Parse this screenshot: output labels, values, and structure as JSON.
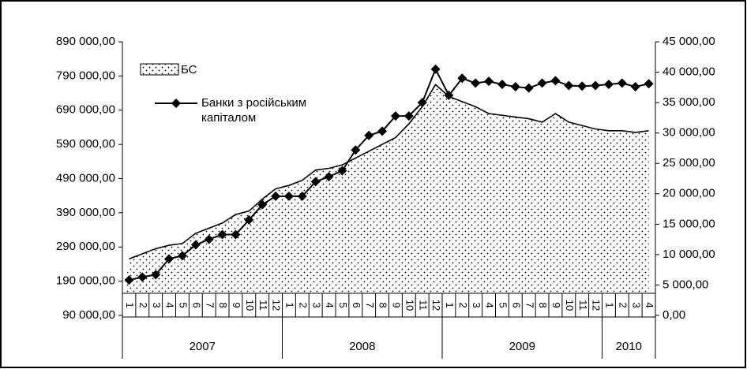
{
  "chart_data": {
    "type": "line-area",
    "categories": [
      "1",
      "2",
      "3",
      "4",
      "5",
      "6",
      "7",
      "8",
      "9",
      "10",
      "11",
      "12",
      "1",
      "2",
      "3",
      "4",
      "5",
      "6",
      "7",
      "8",
      "9",
      "10",
      "11",
      "12",
      "1",
      "2",
      "3",
      "4",
      "5",
      "6",
      "7",
      "8",
      "9",
      "10",
      "11",
      "12",
      "1",
      "2",
      "3",
      "4"
    ],
    "category_groups": [
      "2007",
      "2008",
      "2009",
      "2010"
    ],
    "series": [
      {
        "name": "БС",
        "kind": "area",
        "axis": "y",
        "color": "#000000",
        "values": [
          255000,
          270000,
          285000,
          295000,
          300000,
          330000,
          345000,
          360000,
          385000,
          395000,
          430000,
          460000,
          470000,
          485000,
          515000,
          520000,
          530000,
          550000,
          570000,
          590000,
          610000,
          650000,
          700000,
          765000,
          730000,
          715000,
          700000,
          680000,
          675000,
          670000,
          665000,
          655000,
          680000,
          655000,
          645000,
          635000,
          630000,
          630000,
          625000,
          630000
        ]
      },
      {
        "name": "Банки з російським капіталом",
        "kind": "line",
        "axis": "y2",
        "color": "#000000",
        "values": [
          5800,
          6300,
          6700,
          9300,
          9800,
          11600,
          12500,
          13300,
          13300,
          15700,
          18200,
          19600,
          19600,
          19600,
          22000,
          22800,
          23800,
          27200,
          29600,
          30300,
          32800,
          32800,
          35000,
          40500,
          36200,
          39000,
          38200,
          38500,
          38000,
          37600,
          37400,
          38200,
          38600,
          37800,
          37700,
          37800,
          38000,
          38200,
          37600,
          38100
        ]
      }
    ],
    "ylim": [
      90000,
      890000
    ],
    "yticks": [
      {
        "value": 90000,
        "label": "90 000,00"
      },
      {
        "value": 190000,
        "label": "190 000,00"
      },
      {
        "value": 290000,
        "label": "290 000,00"
      },
      {
        "value": 390000,
        "label": "390 000,00"
      },
      {
        "value": 490000,
        "label": "490 000,00"
      },
      {
        "value": 590000,
        "label": "590 000,00"
      },
      {
        "value": 690000,
        "label": "690 000,00"
      },
      {
        "value": 790000,
        "label": "790 000,00"
      },
      {
        "value": 890000,
        "label": "890 000,00"
      }
    ],
    "y2lim": [
      0,
      45000
    ],
    "y2ticks": [
      {
        "value": 0,
        "label": "0,00"
      },
      {
        "value": 5000,
        "label": "5 000,00"
      },
      {
        "value": 10000,
        "label": "10 000,00"
      },
      {
        "value": 15000,
        "label": "15 000,00"
      },
      {
        "value": 20000,
        "label": "20 000,00"
      },
      {
        "value": 25000,
        "label": "25 000,00"
      },
      {
        "value": 30000,
        "label": "30 000,00"
      },
      {
        "value": 35000,
        "label": "35 000,00"
      },
      {
        "value": 40000,
        "label": "40 000,00"
      },
      {
        "value": 45000,
        "label": "45 000,00"
      }
    ]
  }
}
